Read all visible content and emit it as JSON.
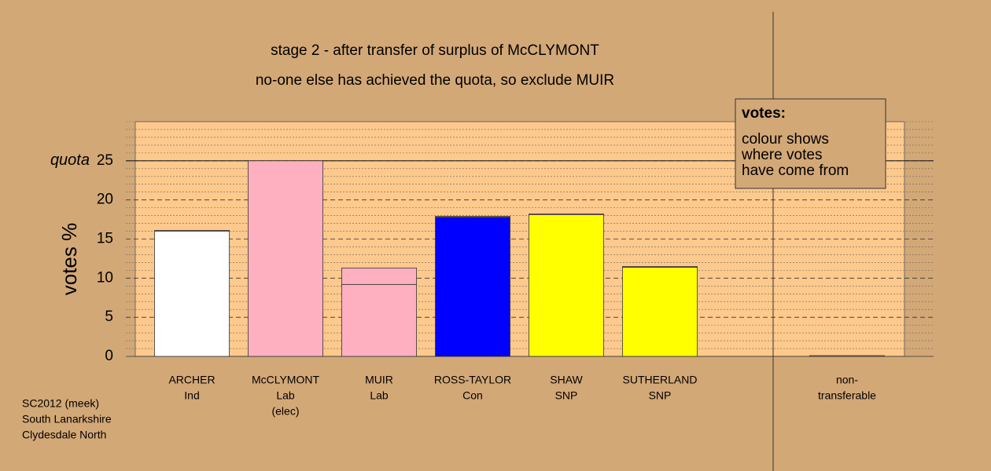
{
  "chart_data": {
    "type": "bar",
    "title": "stage 2 - after transfer of surplus of McCLYMONT",
    "subtitle": "no-one else has achieved the quota, so exclude MUIR",
    "y_label": "votes %",
    "categories": [
      [
        "ARCHER",
        "Ind"
      ],
      [
        "McCLYMONT",
        "Lab",
        "(elec)"
      ],
      [
        "MUIR",
        "Lab"
      ],
      [
        "ROSS-TAYLOR",
        "Con"
      ],
      [
        "SHAW",
        "SNP"
      ],
      [
        "SUTHERLAND",
        "SNP"
      ],
      null,
      [
        "non-",
        "transferable"
      ]
    ],
    "series": [
      {
        "colors": [
          "#ffffff",
          "#ffb0c0",
          "#ffb0c0",
          "#0000ff",
          "#ffff00",
          "#ffff00",
          null,
          "#ffb0c0"
        ],
        "values": [
          16.0,
          25.0,
          9.2,
          17.8,
          18.1,
          11.4,
          null,
          0
        ]
      },
      {
        "color": "#ffb0c0",
        "values": [
          0.1,
          0,
          2.1,
          0.1,
          0.1,
          0.1,
          null,
          0.1
        ]
      }
    ],
    "ylim": [
      0,
      30
    ],
    "yticks": [
      0,
      5,
      10,
      15,
      20,
      25
    ],
    "minor_yticks": [
      1,
      2,
      3,
      4,
      6,
      7,
      8,
      9,
      11,
      12,
      13,
      14,
      16,
      17,
      18,
      19,
      21,
      22,
      23,
      24,
      26,
      27,
      28,
      29,
      30
    ],
    "quota": 25,
    "quota_label": "quota",
    "legend": {
      "title": "votes:",
      "lines": [
        "colour shows",
        "where votes",
        "have come from"
      ]
    },
    "footnote": [
      "SC2012 (meek)",
      "South Lanarkshire",
      "Clydesdale North"
    ]
  }
}
